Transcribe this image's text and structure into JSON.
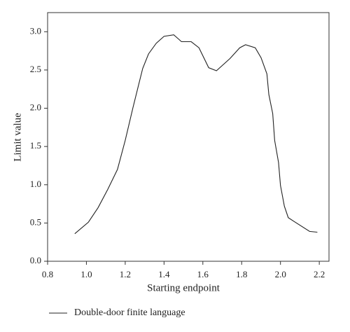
{
  "chart_data": {
    "type": "line",
    "xlabel": "Starting endpoint",
    "ylabel": "Limit value",
    "xlim": [
      0.8,
      2.25
    ],
    "ylim": [
      0,
      3.25
    ],
    "xticks": [
      0.8,
      {
        "value": 1,
        "label": "1.0"
      },
      1.2,
      1.4,
      1.6,
      1.8,
      {
        "value": 2,
        "label": "2.0"
      },
      2.2
    ],
    "yticks": [
      {
        "value": 0,
        "label": "0.0"
      },
      0.5,
      {
        "value": 1,
        "label": "1.0"
      },
      1.5,
      {
        "value": 2,
        "label": "2.0"
      },
      2.5,
      {
        "value": 3,
        "label": "3.0"
      }
    ],
    "legend": "bottom-left",
    "series": [
      {
        "name": "Double-door finite language",
        "color": "#222222",
        "x": [
          0.94,
          1.01,
          1.06,
          1.11,
          1.16,
          1.2,
          1.24,
          1.29,
          1.32,
          1.36,
          1.4,
          1.45,
          1.49,
          1.54,
          1.58,
          1.63,
          1.67,
          1.74,
          1.79,
          1.82,
          1.87,
          1.9,
          1.93,
          1.94,
          1.96,
          1.97,
          1.99,
          2.0,
          2.02,
          2.04,
          2.07,
          2.15,
          2.19
        ],
        "values": [
          0.36,
          0.51,
          0.7,
          0.94,
          1.2,
          1.58,
          2.01,
          2.52,
          2.71,
          2.85,
          2.94,
          2.96,
          2.87,
          2.87,
          2.79,
          2.53,
          2.49,
          2.65,
          2.79,
          2.83,
          2.79,
          2.66,
          2.45,
          2.18,
          1.93,
          1.58,
          1.29,
          0.99,
          0.72,
          0.57,
          0.52,
          0.39,
          0.38
        ]
      }
    ]
  }
}
